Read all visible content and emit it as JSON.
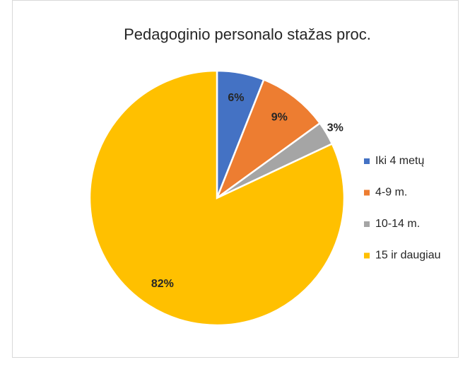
{
  "chart_data": {
    "type": "pie",
    "title": "Pedagoginio personalo stažas proc.",
    "categories": [
      "Iki 4 metų",
      "4-9 m.",
      "10-14 m.",
      "15 ir daugiau"
    ],
    "values": [
      6,
      9,
      3,
      82
    ],
    "value_labels": [
      "6%",
      "9%",
      "3%",
      "82%"
    ],
    "colors": [
      "#4472c4",
      "#ed7d31",
      "#a5a5a5",
      "#ffc000"
    ],
    "legend": "right"
  }
}
